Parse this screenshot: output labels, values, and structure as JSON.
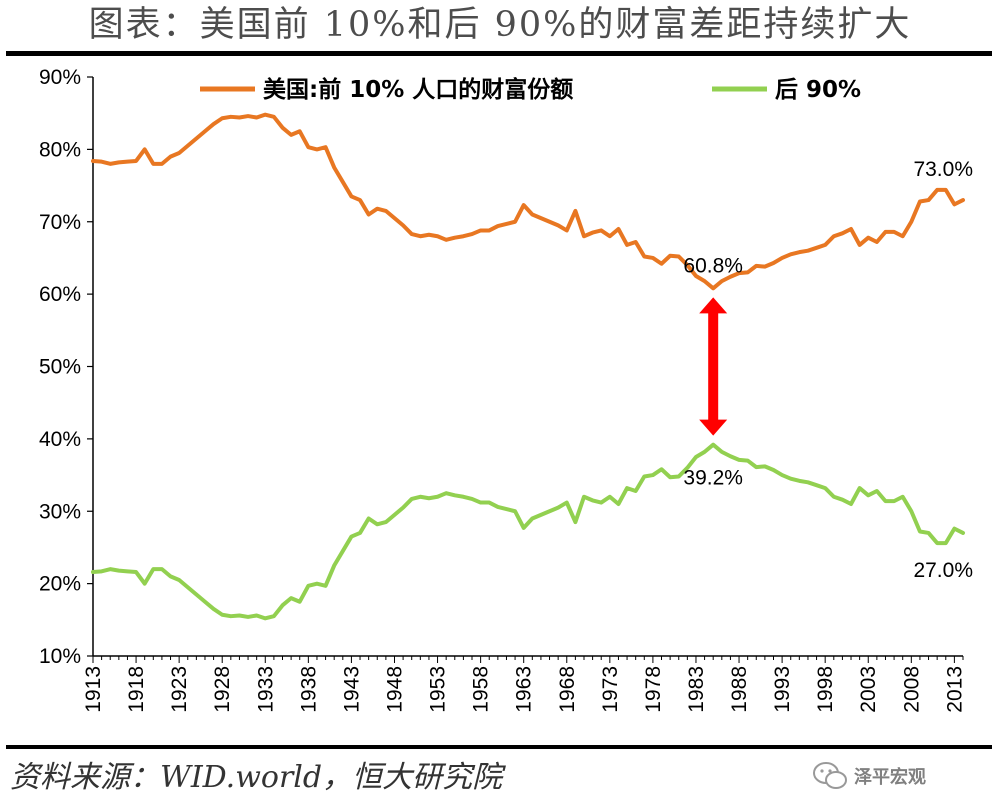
{
  "title": "图表：美国前 10%和后 90%的财富差距持续扩大",
  "source": "资料来源：WID.world，恒大研究院",
  "watermark": "泽平宏观",
  "colors": {
    "top10": "#e87722",
    "bottom90": "#92d050",
    "arrow": "#ff0000"
  },
  "chart_data": {
    "type": "line",
    "title": "",
    "xlabel": "",
    "ylabel": "",
    "ylim": [
      10,
      90
    ],
    "yticks": [
      "10%",
      "20%",
      "30%",
      "40%",
      "50%",
      "60%",
      "70%",
      "80%",
      "90%"
    ],
    "xlim": [
      1913,
      2014
    ],
    "xticks": [
      "1913",
      "1918",
      "1923",
      "1928",
      "1933",
      "1938",
      "1943",
      "1948",
      "1953",
      "1958",
      "1963",
      "1968",
      "1973",
      "1978",
      "1983",
      "1988",
      "1993",
      "1998",
      "2003",
      "2008",
      "2013"
    ],
    "x": [
      1913,
      1914,
      1915,
      1916,
      1917,
      1918,
      1919,
      1920,
      1921,
      1922,
      1923,
      1924,
      1925,
      1926,
      1927,
      1928,
      1929,
      1930,
      1931,
      1932,
      1933,
      1934,
      1935,
      1936,
      1937,
      1938,
      1939,
      1940,
      1941,
      1942,
      1943,
      1944,
      1945,
      1946,
      1947,
      1948,
      1949,
      1950,
      1951,
      1952,
      1953,
      1954,
      1955,
      1956,
      1957,
      1958,
      1959,
      1960,
      1961,
      1962,
      1963,
      1964,
      1965,
      1966,
      1967,
      1968,
      1969,
      1970,
      1971,
      1972,
      1973,
      1974,
      1975,
      1976,
      1977,
      1978,
      1979,
      1980,
      1981,
      1982,
      1983,
      1984,
      1985,
      1986,
      1987,
      1988,
      1989,
      1990,
      1991,
      1992,
      1993,
      1994,
      1995,
      1996,
      1997,
      1998,
      1999,
      2000,
      2001,
      2002,
      2003,
      2004,
      2005,
      2006,
      2007,
      2008,
      2009,
      2010,
      2011,
      2012,
      2013,
      2014
    ],
    "series": [
      {
        "name": "美国:前 10% 人口的财富份额",
        "values": [
          78.4,
          78.3,
          78.0,
          78.2,
          78.3,
          78.4,
          80.0,
          78.0,
          78.0,
          79.0,
          79.5,
          80.5,
          81.5,
          82.5,
          83.5,
          84.3,
          84.5,
          84.4,
          84.6,
          84.4,
          84.8,
          84.5,
          83.0,
          82.0,
          82.5,
          80.3,
          80.0,
          80.3,
          77.5,
          75.5,
          73.5,
          73.0,
          71.0,
          71.8,
          71.5,
          70.5,
          69.5,
          68.3,
          68.0,
          68.2,
          68.0,
          67.5,
          67.8,
          68.0,
          68.3,
          68.8,
          68.8,
          69.4,
          69.7,
          70.0,
          72.3,
          71.0,
          70.5,
          70.0,
          69.5,
          68.8,
          71.5,
          68.0,
          68.5,
          68.8,
          68.0,
          69.0,
          66.8,
          67.2,
          65.2,
          65.0,
          64.2,
          65.3,
          65.2,
          64.0,
          62.5,
          61.8,
          60.8,
          61.8,
          62.4,
          62.9,
          63.0,
          63.9,
          63.8,
          64.3,
          65.0,
          65.5,
          65.8,
          66.0,
          66.4,
          66.8,
          68.0,
          68.4,
          69.0,
          66.8,
          67.8,
          67.2,
          68.6,
          68.6,
          68.0,
          70.0,
          72.8,
          73.0,
          74.4,
          74.4,
          72.4,
          73.0
        ]
      },
      {
        "name": "后 90%",
        "values": [
          21.6,
          21.7,
          22.0,
          21.8,
          21.7,
          21.6,
          20.0,
          22.0,
          22.0,
          21.0,
          20.5,
          19.5,
          18.5,
          17.5,
          16.5,
          15.7,
          15.5,
          15.6,
          15.4,
          15.6,
          15.2,
          15.5,
          17.0,
          18.0,
          17.5,
          19.7,
          20.0,
          19.7,
          22.5,
          24.5,
          26.5,
          27.0,
          29.0,
          28.2,
          28.5,
          29.5,
          30.5,
          31.7,
          32.0,
          31.8,
          32.0,
          32.5,
          32.2,
          32.0,
          31.7,
          31.2,
          31.2,
          30.6,
          30.3,
          30.0,
          27.7,
          29.0,
          29.5,
          30.0,
          30.5,
          31.2,
          28.5,
          32.0,
          31.5,
          31.2,
          32.0,
          31.0,
          33.2,
          32.8,
          34.8,
          35.0,
          35.8,
          34.7,
          34.8,
          36.0,
          37.5,
          38.2,
          39.2,
          38.2,
          37.6,
          37.1,
          37.0,
          36.1,
          36.2,
          35.7,
          35.0,
          34.5,
          34.2,
          34.0,
          33.6,
          33.2,
          32.0,
          31.6,
          31.0,
          33.2,
          32.2,
          32.8,
          31.4,
          31.4,
          32.0,
          30.0,
          27.2,
          27.0,
          25.6,
          25.6,
          27.6,
          27.0
        ]
      }
    ],
    "annotations": [
      {
        "text": "60.8%",
        "x": 1985,
        "y": 60.8,
        "series": 0
      },
      {
        "text": "39.2%",
        "x": 1985,
        "y": 39.2,
        "series": 1
      },
      {
        "text": "73.0%",
        "x": 2014,
        "y": 73.0,
        "series": 0
      },
      {
        "text": "27.0%",
        "x": 2014,
        "y": 27.0,
        "series": 1
      }
    ],
    "arrow": {
      "x": 1985,
      "from": 60.8,
      "to": 39.2
    },
    "legend_position": "top"
  }
}
